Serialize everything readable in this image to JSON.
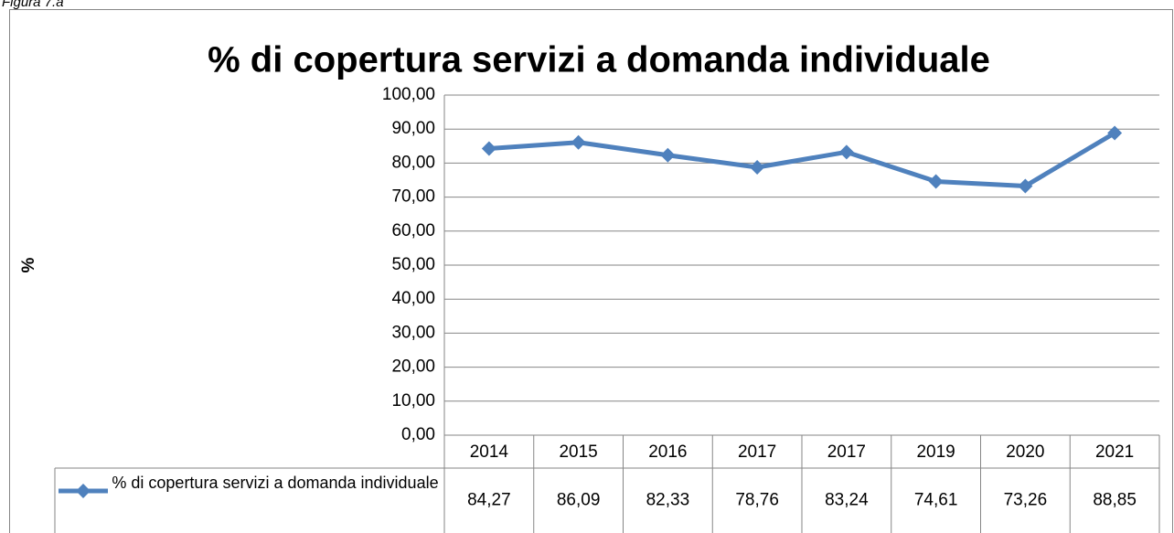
{
  "figure_label": "Figura 7.a",
  "chart_data": {
    "type": "line",
    "title": "% di copertura servizi a domanda individuale",
    "y_label": "%",
    "categories": [
      "2014",
      "2015",
      "2016",
      "2017",
      "2017",
      "2019",
      "2020",
      "2021"
    ],
    "series": [
      {
        "name": "% di copertura servizi a domanda individuale",
        "color": "#4f81bd",
        "values": [
          84.27,
          86.09,
          82.33,
          78.76,
          83.24,
          74.61,
          73.26,
          88.85
        ],
        "value_labels": [
          "84,27",
          "86,09",
          "82,33",
          "78,76",
          "83,24",
          "74,61",
          "73,26",
          "88,85"
        ]
      }
    ],
    "ylim": [
      0,
      100
    ],
    "yticks": [
      {
        "value": 0,
        "label": "0,00"
      },
      {
        "value": 10,
        "label": "10,00"
      },
      {
        "value": 20,
        "label": "20,00"
      },
      {
        "value": 30,
        "label": "30,00"
      },
      {
        "value": 40,
        "label": "40,00"
      },
      {
        "value": 50,
        "label": "50,00"
      },
      {
        "value": 60,
        "label": "60,00"
      },
      {
        "value": 70,
        "label": "70,00"
      },
      {
        "value": 80,
        "label": "80,00"
      },
      {
        "value": 90,
        "label": "90,00"
      },
      {
        "value": 100,
        "label": "100,00"
      }
    ],
    "grid": true,
    "data_table": true
  }
}
